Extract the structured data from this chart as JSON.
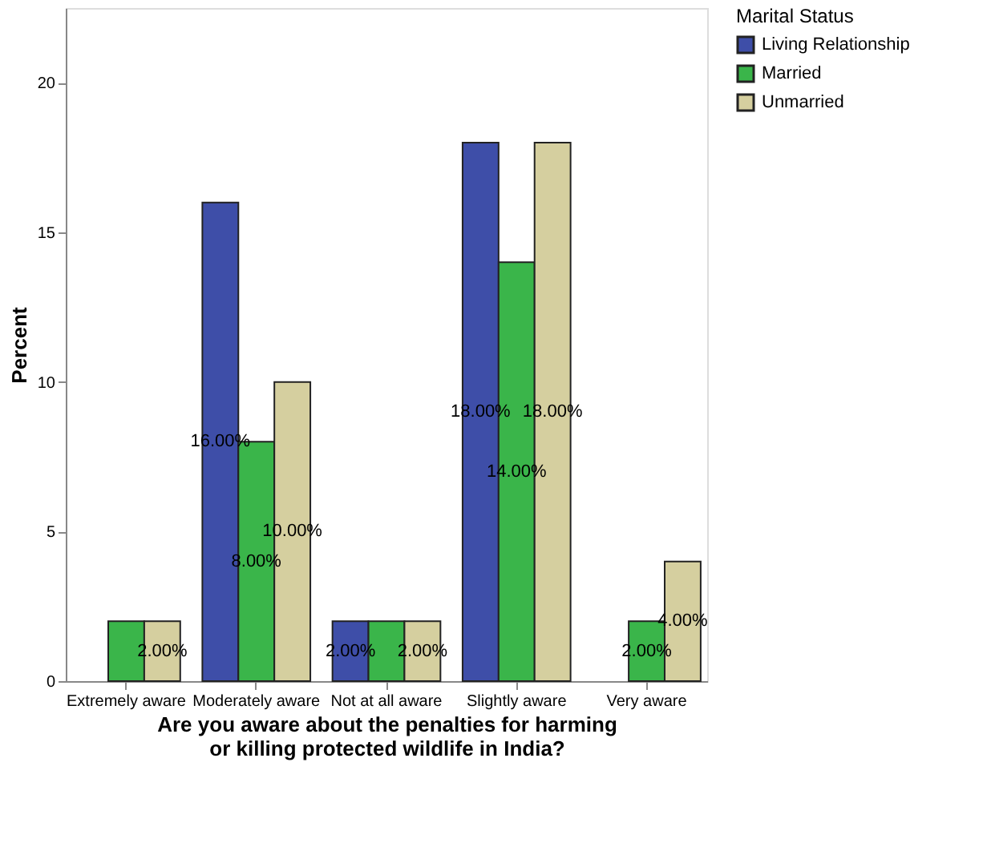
{
  "chart_data": {
    "type": "bar",
    "xlabel": "Are you aware about the penalties for harming or killing protected wildlife in India?",
    "ylabel": "Percent",
    "legend_title": "Marital Status",
    "legend": "top right",
    "grid": false,
    "categories": [
      "Extremely aware",
      "Moderately aware",
      "Not at all aware",
      "Slightly aware",
      "Very aware"
    ],
    "ylim": [
      0,
      22.5
    ],
    "yticks": [
      0,
      5,
      10,
      15,
      20
    ],
    "series": [
      {
        "name": "Living Relationship",
        "color": "#3e4ea8",
        "values": [
          null,
          16,
          2,
          18,
          null
        ],
        "value_labels": [
          null,
          "16.00%",
          "2.00%",
          "18.00%",
          null
        ]
      },
      {
        "name": "Married",
        "color": "#3ab54a",
        "values": [
          2,
          8,
          2,
          14,
          2
        ],
        "value_labels": [
          null,
          "8.00%",
          null,
          "14.00%",
          "2.00%"
        ]
      },
      {
        "name": "Unmarried",
        "color": "#d5cf9f",
        "values": [
          2,
          10,
          2,
          18,
          4
        ],
        "value_labels": [
          "2.00%",
          "10.00%",
          "2.00%",
          "18.00%",
          "4.00%"
        ]
      }
    ]
  }
}
